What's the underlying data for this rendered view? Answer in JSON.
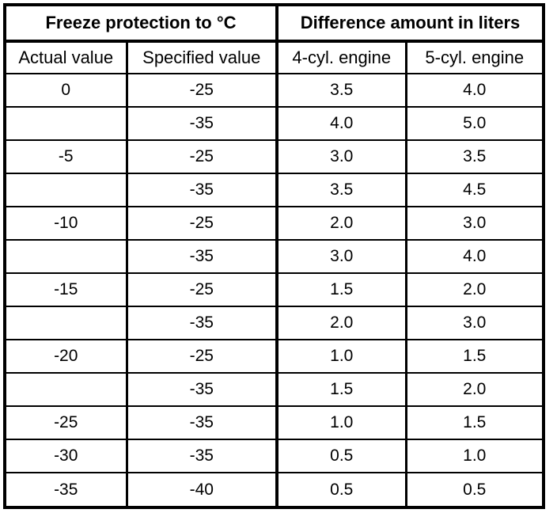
{
  "colors": {
    "background": "#ffffff",
    "border": "#000000",
    "text": "#000000"
  },
  "table": {
    "header_groups": [
      {
        "label": "Freeze protection to °C",
        "colspan": 2
      },
      {
        "label": "Difference amount in liters",
        "colspan": 2
      }
    ],
    "columns": [
      "Actual value",
      "Specified value",
      "4-cyl. engine",
      "5-cyl. engine"
    ],
    "rows": [
      [
        "0",
        "-25",
        "3.5",
        "4.0"
      ],
      [
        "",
        "-35",
        "4.0",
        "5.0"
      ],
      [
        "-5",
        "-25",
        "3.0",
        "3.5"
      ],
      [
        "",
        "-35",
        "3.5",
        "4.5"
      ],
      [
        "-10",
        "-25",
        "2.0",
        "3.0"
      ],
      [
        "",
        "-35",
        "3.0",
        "4.0"
      ],
      [
        "-15",
        "-25",
        "1.5",
        "2.0"
      ],
      [
        "",
        "-35",
        "2.0",
        "3.0"
      ],
      [
        "-20",
        "-25",
        "1.0",
        "1.5"
      ],
      [
        "",
        "-35",
        "1.5",
        "2.0"
      ],
      [
        "-25",
        "-35",
        "1.0",
        "1.5"
      ],
      [
        "-30",
        "-35",
        "0.5",
        "1.0"
      ],
      [
        "-35",
        "-40",
        "0.5",
        "0.5"
      ]
    ]
  }
}
